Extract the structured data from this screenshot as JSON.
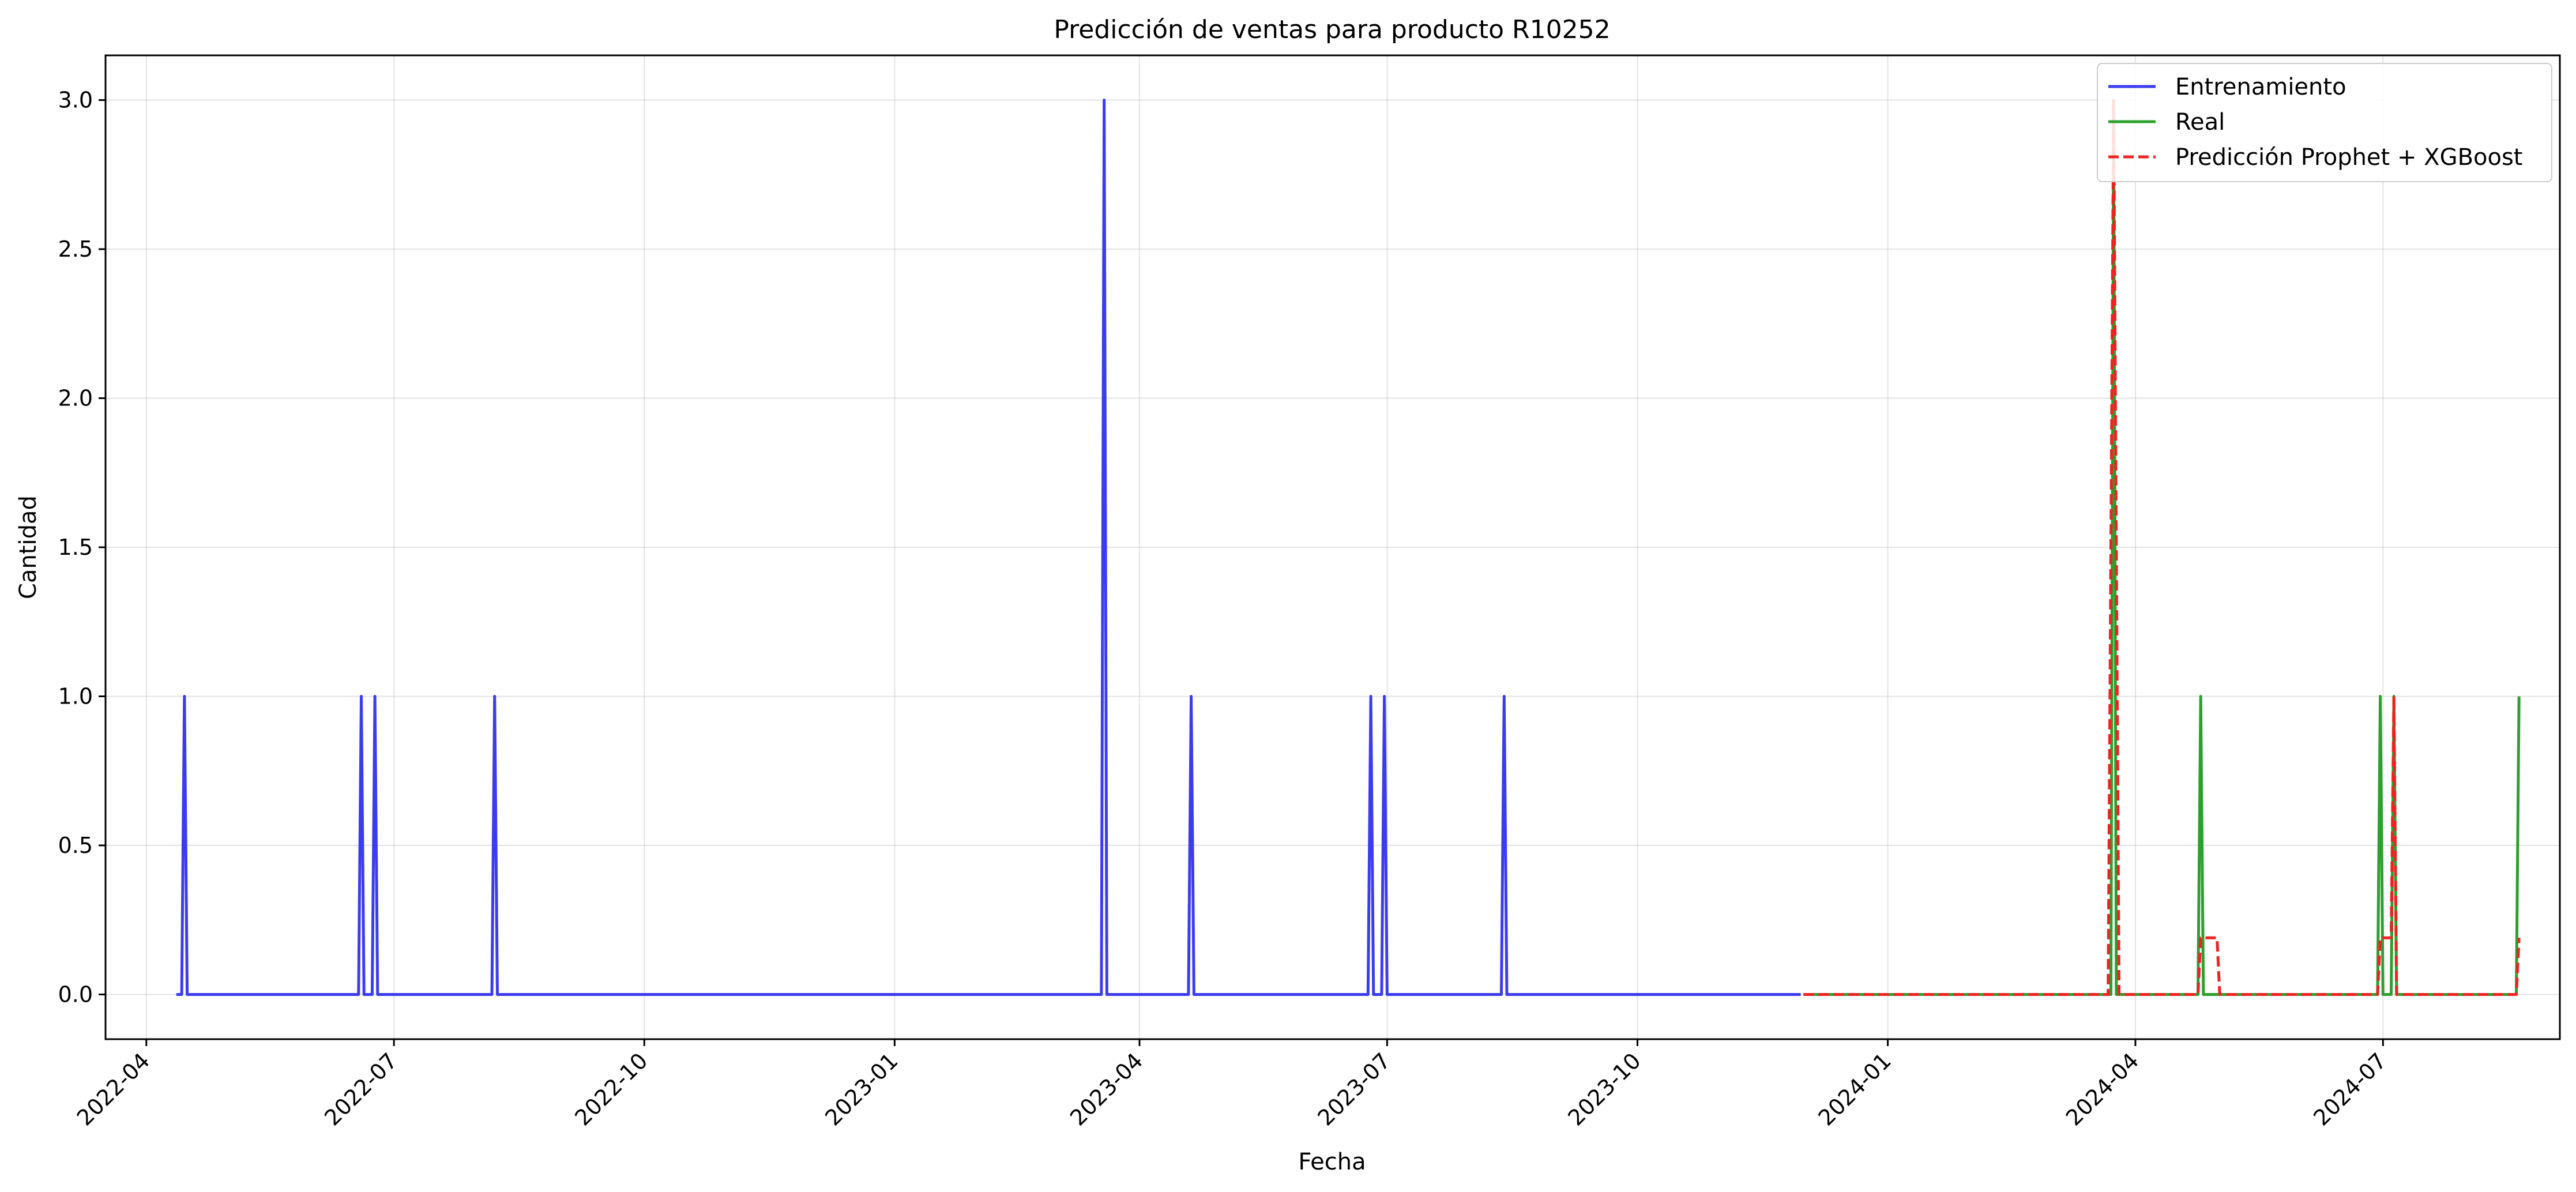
{
  "chart_data": {
    "type": "line",
    "title": "Predicción de ventas para producto R10252",
    "xlabel": "Fecha",
    "ylabel": "Cantidad",
    "x_axis_type": "date",
    "xlim": [
      "2022-03-17",
      "2024-09-04"
    ],
    "ylim": [
      -0.15,
      3.15
    ],
    "x_ticks": [
      "2022-04",
      "2022-07",
      "2022-10",
      "2023-01",
      "2023-04",
      "2023-07",
      "2023-10",
      "2024-01",
      "2024-04",
      "2024-07"
    ],
    "x_tick_dates": [
      "2022-04-01",
      "2022-07-01",
      "2022-10-01",
      "2023-01-01",
      "2023-04-01",
      "2023-07-01",
      "2023-10-01",
      "2024-01-01",
      "2024-04-01",
      "2024-07-01"
    ],
    "y_ticks": [
      "0.0",
      "0.5",
      "1.0",
      "1.5",
      "2.0",
      "2.5",
      "3.0"
    ],
    "y_tick_values": [
      0,
      0.5,
      1.0,
      1.5,
      2.0,
      2.5,
      3.0
    ],
    "grid": true,
    "legend_position": "top-right",
    "series": [
      {
        "name": "Entrenamiento",
        "color": "#3b3bf0",
        "dash": "solid",
        "start": "2022-04-12",
        "end": "2023-11-30",
        "spikes": [
          {
            "date": "2022-04-15",
            "value": 1.0
          },
          {
            "date": "2022-06-19",
            "value": 1.0
          },
          {
            "date": "2022-06-24",
            "value": 1.0
          },
          {
            "date": "2022-08-07",
            "value": 1.0
          },
          {
            "date": "2023-03-19",
            "value": 3.0
          },
          {
            "date": "2023-04-20",
            "value": 1.0
          },
          {
            "date": "2023-06-25",
            "value": 1.0
          },
          {
            "date": "2023-06-30",
            "value": 1.0
          },
          {
            "date": "2023-08-13",
            "value": 1.0
          }
        ]
      },
      {
        "name": "Real",
        "color": "#2ca02c",
        "dash": "solid",
        "start": "2023-12-01",
        "end": "2024-08-20",
        "spikes": [
          {
            "date": "2024-03-24",
            "value": 3.0
          },
          {
            "date": "2024-04-25",
            "value": 1.0
          },
          {
            "date": "2024-06-30",
            "value": 1.0
          },
          {
            "date": "2024-07-05",
            "value": 1.0
          },
          {
            "date": "2024-08-20",
            "value": 1.0
          }
        ]
      },
      {
        "name": "Predicción Prophet + XGBoost",
        "color": "#ee2222",
        "dash": "dashed",
        "start": "2023-12-01",
        "end": "2024-08-20",
        "points": [
          {
            "date": "2023-12-01",
            "value": 0.0
          },
          {
            "date": "2024-03-22",
            "value": 0.0
          },
          {
            "date": "2024-03-24",
            "value": 3.0
          },
          {
            "date": "2024-03-26",
            "value": 0.0
          },
          {
            "date": "2024-04-24",
            "value": 0.0
          },
          {
            "date": "2024-04-25",
            "value": 0.19
          },
          {
            "date": "2024-05-01",
            "value": 0.19
          },
          {
            "date": "2024-05-02",
            "value": 0.0
          },
          {
            "date": "2024-06-29",
            "value": 0.0
          },
          {
            "date": "2024-06-30",
            "value": 0.19
          },
          {
            "date": "2024-07-04",
            "value": 0.19
          },
          {
            "date": "2024-07-05",
            "value": 1.0
          },
          {
            "date": "2024-07-06",
            "value": 0.0
          },
          {
            "date": "2024-08-19",
            "value": 0.0
          },
          {
            "date": "2024-08-20",
            "value": 0.19
          }
        ]
      }
    ]
  }
}
